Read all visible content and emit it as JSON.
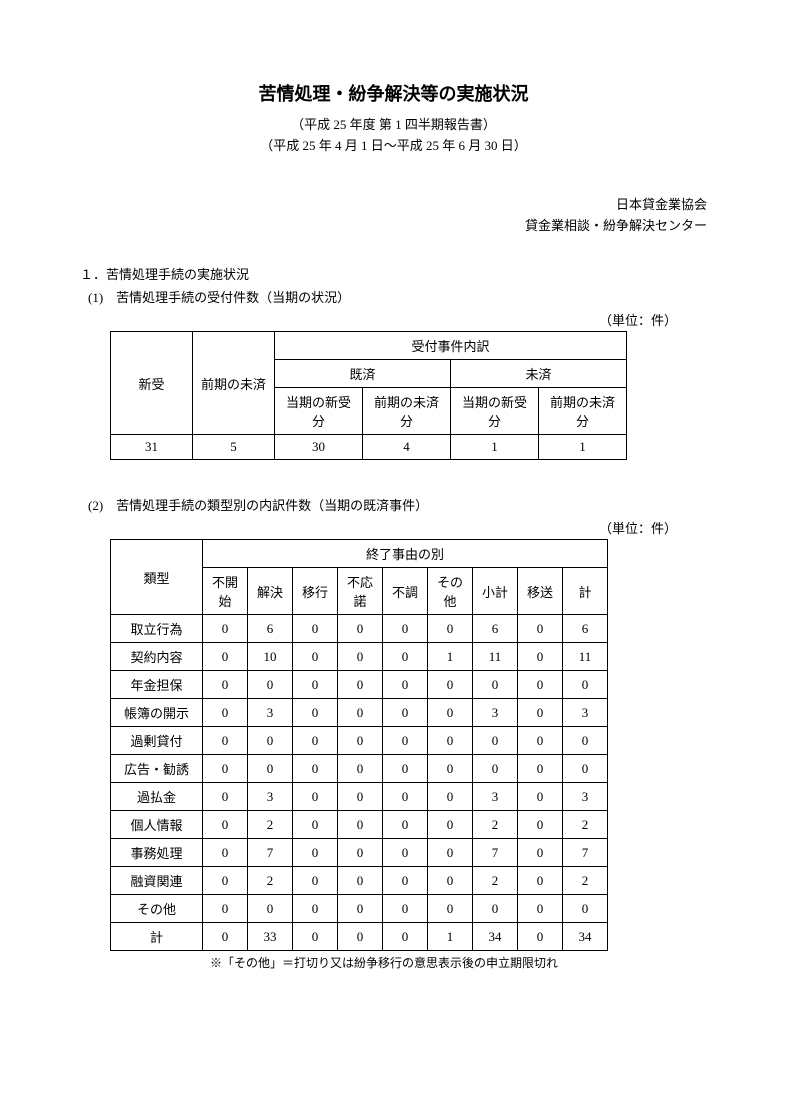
{
  "title": "苦情処理・紛争解決等の実施状況",
  "subtitle1": "（平成 25 年度  第 1 四半期報告書）",
  "subtitle2": "（平成 25 年 4 月 1 日～平成 25 年 6 月 30 日）",
  "org1": "日本貸金業協会",
  "org2": "貸金業相談・紛争解決センター",
  "section1": "１．苦情処理手続の実施状況",
  "sub1": "(1)　苦情処理手続の受付件数（当期の状況）",
  "unit": "（単位：件）",
  "table1": {
    "h_uketsuke": "受付事件内訳",
    "h_shinju": "新受",
    "h_zenki_misai": "前期の未済",
    "h_kisai": "既済",
    "h_misai": "未済",
    "h_touki_shinju": "当期の新受分",
    "h_zenki_misai2": "前期の未済分",
    "row": [
      "31",
      "5",
      "30",
      "4",
      "1",
      "1"
    ]
  },
  "sub2": "(2)　苦情処理手続の類型別の内訳件数（当期の既済事件）",
  "table2": {
    "h_ruikei": "類型",
    "h_shuuryou": "終了事由の別",
    "cols": [
      "不開始",
      "解決",
      "移行",
      "不応諾",
      "不調",
      "その他",
      "小計",
      "移送",
      "計"
    ],
    "categories": [
      "取立行為",
      "契約内容",
      "年金担保",
      "帳簿の開示",
      "過剰貸付",
      "広告・勧誘",
      "過払金",
      "個人情報",
      "事務処理",
      "融資関連",
      "その他",
      "計"
    ],
    "rows": [
      [
        "0",
        "6",
        "0",
        "0",
        "0",
        "0",
        "6",
        "0",
        "6"
      ],
      [
        "0",
        "10",
        "0",
        "0",
        "0",
        "1",
        "11",
        "0",
        "11"
      ],
      [
        "0",
        "0",
        "0",
        "0",
        "0",
        "0",
        "0",
        "0",
        "0"
      ],
      [
        "0",
        "3",
        "0",
        "0",
        "0",
        "0",
        "3",
        "0",
        "3"
      ],
      [
        "0",
        "0",
        "0",
        "0",
        "0",
        "0",
        "0",
        "0",
        "0"
      ],
      [
        "0",
        "0",
        "0",
        "0",
        "0",
        "0",
        "0",
        "0",
        "0"
      ],
      [
        "0",
        "3",
        "0",
        "0",
        "0",
        "0",
        "3",
        "0",
        "3"
      ],
      [
        "0",
        "2",
        "0",
        "0",
        "0",
        "0",
        "2",
        "0",
        "2"
      ],
      [
        "0",
        "7",
        "0",
        "0",
        "0",
        "0",
        "7",
        "0",
        "7"
      ],
      [
        "0",
        "2",
        "0",
        "0",
        "0",
        "0",
        "2",
        "0",
        "2"
      ],
      [
        "0",
        "0",
        "0",
        "0",
        "0",
        "0",
        "0",
        "0",
        "0"
      ],
      [
        "0",
        "33",
        "0",
        "0",
        "0",
        "1",
        "34",
        "0",
        "34"
      ]
    ]
  },
  "footnote": "※「その他」＝打切り又は紛争移行の意思表示後の申立期限切れ"
}
